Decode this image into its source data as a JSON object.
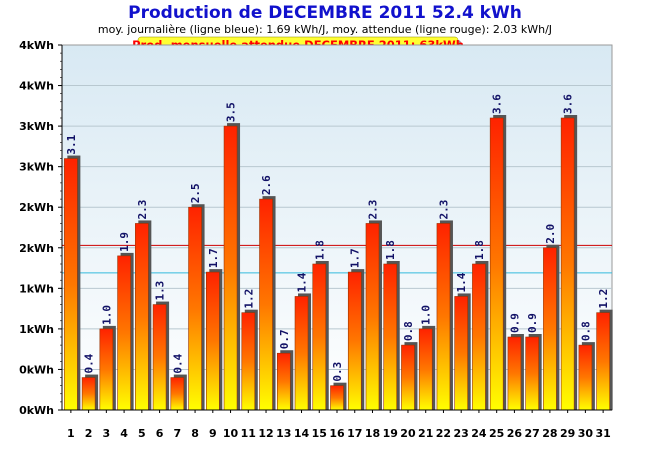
{
  "header": {
    "title": "Production de DECEMBRE 2011  52.4 kWh",
    "subtitle": "moy. journalière (ligne bleue): 1.69 kWh/J,   moy. attendue (ligne rouge): 2.03 kWh/J",
    "banner": "Prod. mensuelle attendue DECEMBRE 2011: 63kWh"
  },
  "colors": {
    "title": "#1111cc",
    "banner_fill": "#ffff33",
    "banner_text": "#ff0000",
    "bar_top": "#ff2200",
    "bar_bottom": "#ffff00",
    "bar_shadow": "#555555",
    "plot_bg_top": "#d8e9f3",
    "plot_bg_bottom": "#ffffff",
    "avg_line": "#33bbdd",
    "expected_line": "#cc0000",
    "value_label": "#111166"
  },
  "chart_data": {
    "type": "bar",
    "title": "Production de DECEMBRE 2011  52.4 kWh",
    "categories": [
      "1",
      "2",
      "3",
      "4",
      "5",
      "6",
      "7",
      "8",
      "9",
      "10",
      "11",
      "12",
      "13",
      "14",
      "15",
      "16",
      "17",
      "18",
      "19",
      "20",
      "21",
      "22",
      "23",
      "24",
      "25",
      "26",
      "27",
      "28",
      "29",
      "30",
      "31"
    ],
    "values": [
      3.1,
      0.4,
      1.0,
      1.9,
      2.3,
      1.3,
      0.4,
      2.5,
      1.7,
      3.5,
      1.2,
      2.6,
      0.7,
      1.4,
      1.8,
      0.3,
      1.7,
      2.3,
      1.8,
      0.8,
      1.0,
      2.3,
      1.4,
      1.8,
      3.6,
      0.9,
      0.9,
      2.0,
      3.6,
      0.8,
      1.2
    ],
    "value_labels": [
      "3.1",
      "0.4",
      "1.0",
      "1.9",
      "2.3",
      "1.3",
      "0.4",
      "2.5",
      "1.7",
      "3.5",
      "1.2",
      "2.6",
      "0.7",
      "1.4",
      "1.8",
      "0.3",
      "1.7",
      "2.3",
      "1.8",
      "0.8",
      "1.0",
      "2.3",
      "1.4",
      "1.8",
      "3.6",
      "0.9",
      "0.9",
      "2.0",
      "3.6",
      "0.8",
      "1.2"
    ],
    "ylim": [
      0,
      4.5
    ],
    "yticks": [
      0,
      0.5,
      1,
      1.5,
      2,
      2.5,
      3,
      3.5,
      4,
      4.5
    ],
    "ytick_labels": [
      "0kWh",
      "0kWh",
      "1kWh",
      "1kWh",
      "2kWh",
      "2kWh",
      "3kWh",
      "3kWh",
      "4kWh",
      "4kWh"
    ],
    "reference_lines": [
      {
        "value": 1.69,
        "color": "#33bbdd"
      },
      {
        "value": 2.03,
        "color": "#cc0000"
      }
    ],
    "grid": true
  }
}
